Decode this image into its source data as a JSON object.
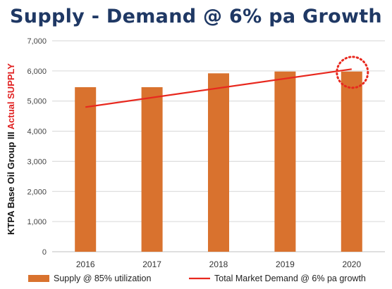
{
  "chart_data": {
    "type": "bar",
    "title": "Supply - Demand @ 6% pa Growth",
    "ylabel_parts": [
      "KTPA Base Oil Group III ",
      "Actual SUPPLY"
    ],
    "xlabel": "",
    "categories": [
      "2016",
      "2017",
      "2018",
      "2019",
      "2020"
    ],
    "ylim": [
      0,
      7000
    ],
    "yticks": [
      0,
      1000,
      2000,
      3000,
      4000,
      5000,
      6000,
      7000
    ],
    "ytick_labels": [
      "0",
      "1,000",
      "2,000",
      "3,000",
      "4,000",
      "5,000",
      "6,000",
      "7,000"
    ],
    "grid": true,
    "legend_position": "bottom",
    "series": [
      {
        "name": "Supply @ 85% utilization",
        "type": "bar",
        "values": [
          5460,
          5460,
          5920,
          5980,
          5980
        ],
        "color": "#d9722e"
      },
      {
        "name": "Total Market  Demand @ 6% pa growth",
        "type": "line",
        "values": [
          4800,
          null,
          null,
          null,
          6060
        ],
        "color": "#e8281e"
      }
    ],
    "annotation": {
      "type": "dotted-circle",
      "category": "2020",
      "value": 6000,
      "color": "#e8281e"
    }
  }
}
